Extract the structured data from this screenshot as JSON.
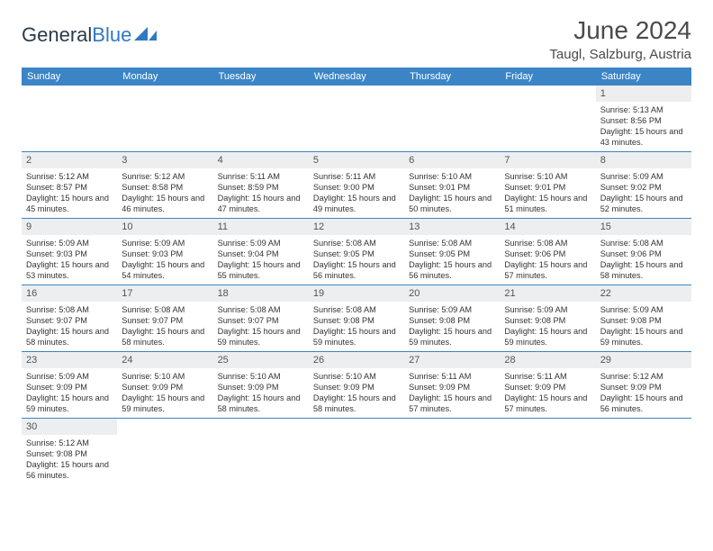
{
  "brand": {
    "general": "General",
    "blue": "Blue"
  },
  "title": "June 2024",
  "location": "Taugl, Salzburg, Austria",
  "header_bg": "#3b85c6",
  "daynum_bg": "#eceeef",
  "rule_color": "#3b85c6",
  "weekdays": [
    "Sunday",
    "Monday",
    "Tuesday",
    "Wednesday",
    "Thursday",
    "Friday",
    "Saturday"
  ],
  "weeks": [
    [
      null,
      null,
      null,
      null,
      null,
      null,
      {
        "n": "1",
        "sunrise": "5:13 AM",
        "sunset": "8:56 PM",
        "dl": "15 hours and 43 minutes."
      }
    ],
    [
      {
        "n": "2",
        "sunrise": "5:12 AM",
        "sunset": "8:57 PM",
        "dl": "15 hours and 45 minutes."
      },
      {
        "n": "3",
        "sunrise": "5:12 AM",
        "sunset": "8:58 PM",
        "dl": "15 hours and 46 minutes."
      },
      {
        "n": "4",
        "sunrise": "5:11 AM",
        "sunset": "8:59 PM",
        "dl": "15 hours and 47 minutes."
      },
      {
        "n": "5",
        "sunrise": "5:11 AM",
        "sunset": "9:00 PM",
        "dl": "15 hours and 49 minutes."
      },
      {
        "n": "6",
        "sunrise": "5:10 AM",
        "sunset": "9:01 PM",
        "dl": "15 hours and 50 minutes."
      },
      {
        "n": "7",
        "sunrise": "5:10 AM",
        "sunset": "9:01 PM",
        "dl": "15 hours and 51 minutes."
      },
      {
        "n": "8",
        "sunrise": "5:09 AM",
        "sunset": "9:02 PM",
        "dl": "15 hours and 52 minutes."
      }
    ],
    [
      {
        "n": "9",
        "sunrise": "5:09 AM",
        "sunset": "9:03 PM",
        "dl": "15 hours and 53 minutes."
      },
      {
        "n": "10",
        "sunrise": "5:09 AM",
        "sunset": "9:03 PM",
        "dl": "15 hours and 54 minutes."
      },
      {
        "n": "11",
        "sunrise": "5:09 AM",
        "sunset": "9:04 PM",
        "dl": "15 hours and 55 minutes."
      },
      {
        "n": "12",
        "sunrise": "5:08 AM",
        "sunset": "9:05 PM",
        "dl": "15 hours and 56 minutes."
      },
      {
        "n": "13",
        "sunrise": "5:08 AM",
        "sunset": "9:05 PM",
        "dl": "15 hours and 56 minutes."
      },
      {
        "n": "14",
        "sunrise": "5:08 AM",
        "sunset": "9:06 PM",
        "dl": "15 hours and 57 minutes."
      },
      {
        "n": "15",
        "sunrise": "5:08 AM",
        "sunset": "9:06 PM",
        "dl": "15 hours and 58 minutes."
      }
    ],
    [
      {
        "n": "16",
        "sunrise": "5:08 AM",
        "sunset": "9:07 PM",
        "dl": "15 hours and 58 minutes."
      },
      {
        "n": "17",
        "sunrise": "5:08 AM",
        "sunset": "9:07 PM",
        "dl": "15 hours and 58 minutes."
      },
      {
        "n": "18",
        "sunrise": "5:08 AM",
        "sunset": "9:07 PM",
        "dl": "15 hours and 59 minutes."
      },
      {
        "n": "19",
        "sunrise": "5:08 AM",
        "sunset": "9:08 PM",
        "dl": "15 hours and 59 minutes."
      },
      {
        "n": "20",
        "sunrise": "5:09 AM",
        "sunset": "9:08 PM",
        "dl": "15 hours and 59 minutes."
      },
      {
        "n": "21",
        "sunrise": "5:09 AM",
        "sunset": "9:08 PM",
        "dl": "15 hours and 59 minutes."
      },
      {
        "n": "22",
        "sunrise": "5:09 AM",
        "sunset": "9:08 PM",
        "dl": "15 hours and 59 minutes."
      }
    ],
    [
      {
        "n": "23",
        "sunrise": "5:09 AM",
        "sunset": "9:09 PM",
        "dl": "15 hours and 59 minutes."
      },
      {
        "n": "24",
        "sunrise": "5:10 AM",
        "sunset": "9:09 PM",
        "dl": "15 hours and 59 minutes."
      },
      {
        "n": "25",
        "sunrise": "5:10 AM",
        "sunset": "9:09 PM",
        "dl": "15 hours and 58 minutes."
      },
      {
        "n": "26",
        "sunrise": "5:10 AM",
        "sunset": "9:09 PM",
        "dl": "15 hours and 58 minutes."
      },
      {
        "n": "27",
        "sunrise": "5:11 AM",
        "sunset": "9:09 PM",
        "dl": "15 hours and 57 minutes."
      },
      {
        "n": "28",
        "sunrise": "5:11 AM",
        "sunset": "9:09 PM",
        "dl": "15 hours and 57 minutes."
      },
      {
        "n": "29",
        "sunrise": "5:12 AM",
        "sunset": "9:09 PM",
        "dl": "15 hours and 56 minutes."
      }
    ],
    [
      {
        "n": "30",
        "sunrise": "5:12 AM",
        "sunset": "9:08 PM",
        "dl": "15 hours and 56 minutes."
      },
      null,
      null,
      null,
      null,
      null,
      null
    ]
  ],
  "labels": {
    "sunrise": "Sunrise: ",
    "sunset": "Sunset: ",
    "daylight": "Daylight: "
  }
}
